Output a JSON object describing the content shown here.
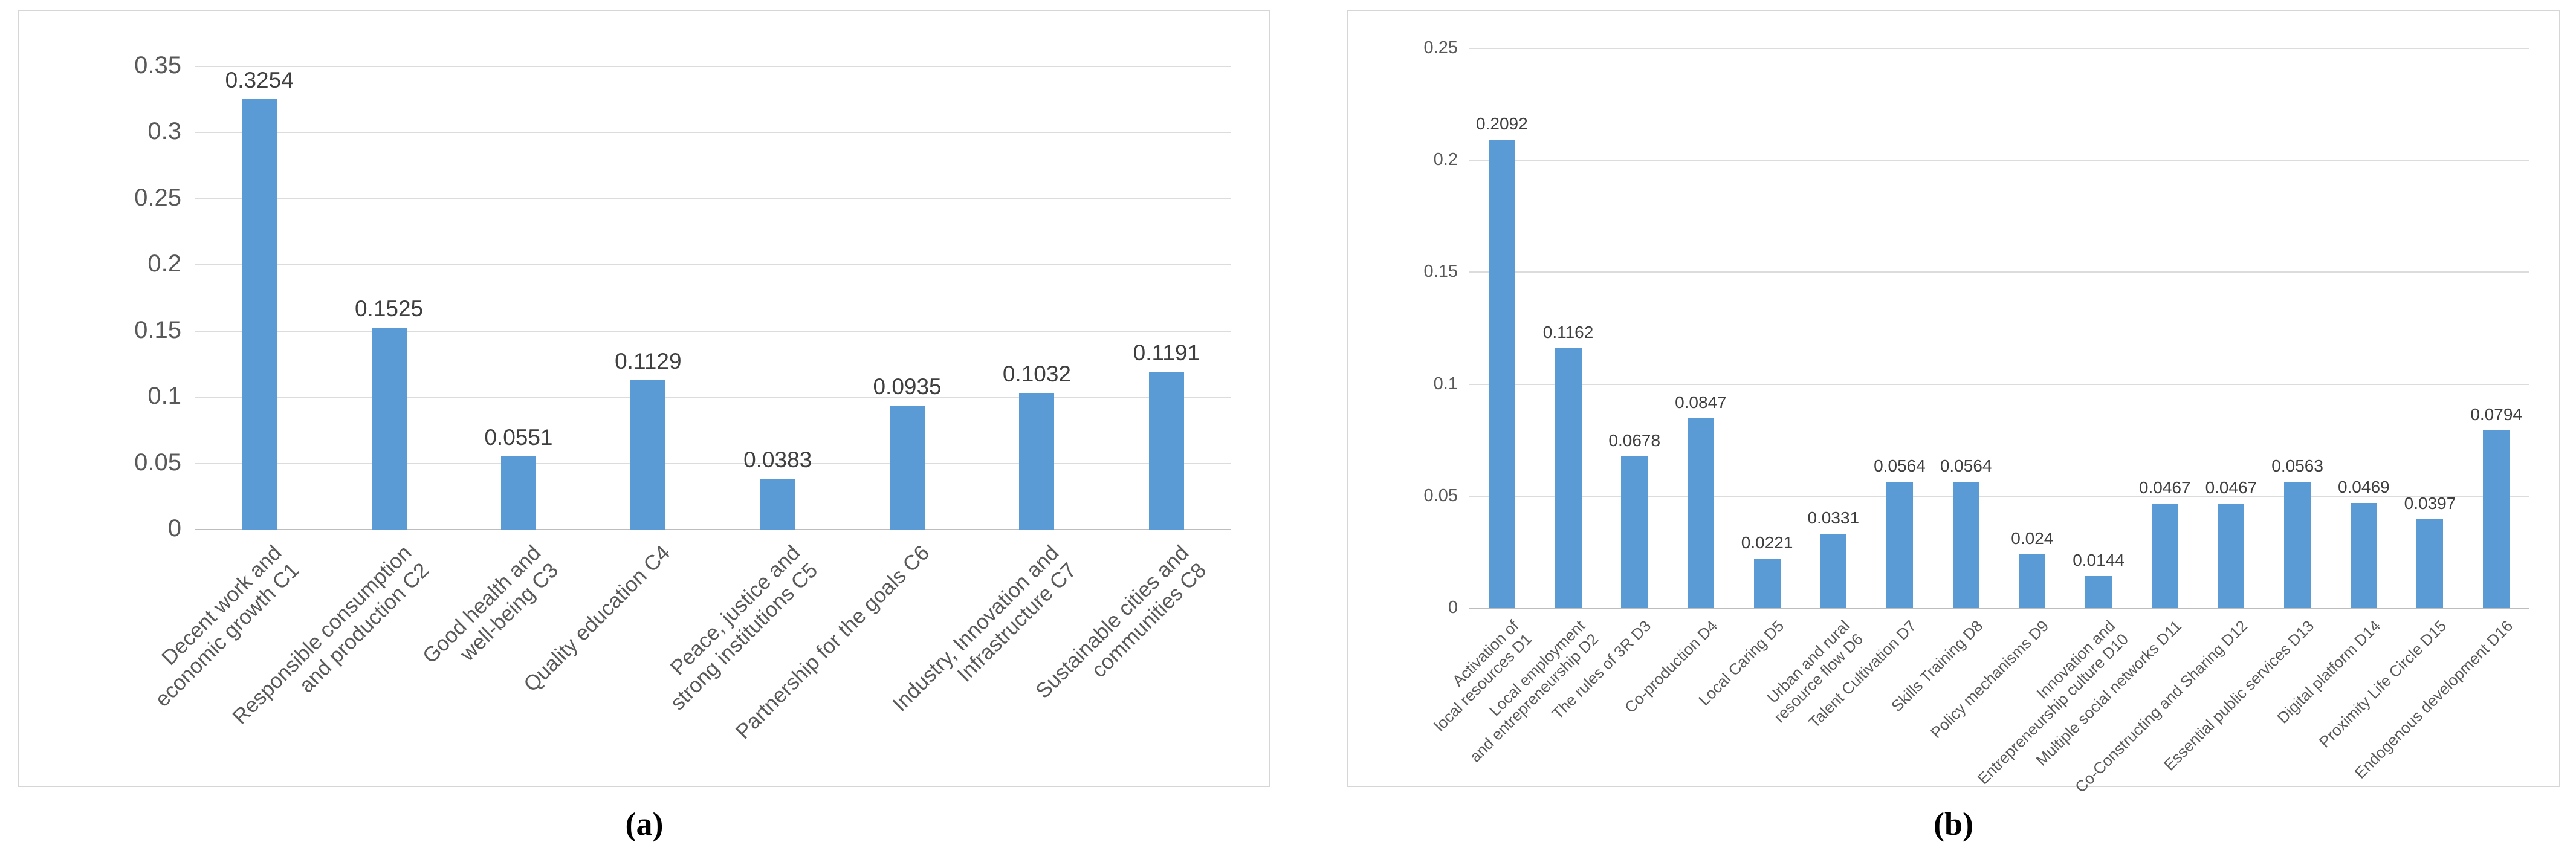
{
  "figure": {
    "captions": [
      "(a)",
      "(b)"
    ]
  },
  "chart_data": [
    {
      "type": "bar",
      "title": "",
      "xlabel": "",
      "ylabel": "",
      "legend": "none",
      "grid": true,
      "bar_color": "#5B9BD5",
      "label_rotation": 45,
      "ylim": [
        0,
        0.35
      ],
      "ytick_labels": [
        "0.35",
        "0.3",
        "0.25",
        "0.2",
        "0.15",
        "0.1",
        "0.05",
        "0"
      ],
      "categories": [
        "Decent work and\neconomic growth C1",
        "Responsible consumption\nand production C2",
        "Good health and\nwell-being C3",
        "Quality education C4",
        "Peace, justice and\nstrong institutions C5",
        "Partnership for the goals C6",
        "Industry, Innovation and\nInfrastructure C7",
        "Sustainable cities and\ncommunities C8"
      ],
      "values": [
        0.3254,
        0.1525,
        0.0551,
        0.1129,
        0.0383,
        0.0935,
        0.1032,
        0.1191
      ],
      "value_labels": [
        "0.3254",
        "0.1525",
        "0.0551",
        "0.1129",
        "0.0383",
        "0.0935",
        "0.1032",
        "0.1191"
      ]
    },
    {
      "type": "bar",
      "title": "",
      "xlabel": "",
      "ylabel": "",
      "legend": "none",
      "grid": true,
      "bar_color": "#5B9BD5",
      "label_rotation": 45,
      "ylim": [
        0,
        0.25
      ],
      "ytick_labels": [
        "0.25",
        "0.2",
        "0.15",
        "0.1",
        "0.05",
        "0"
      ],
      "categories": [
        "Activation of\nlocal resources D1",
        "Local employment\nand entrepreneurship D2",
        "The rules of 3R D3",
        "Co-production D4",
        "Local Caring D5",
        "Urban and rural\nresource flow D6",
        "Talent Cultivation D7",
        "Skills Training D8",
        "Policy mechanisms D9",
        "Innovation and\nEntrepreneurship culture D10",
        "Multiple social networks D11",
        "Co-Constructing and Sharing D12",
        "Essential public services D13",
        "Digital platform D14",
        "Proximity Life Circle D15",
        "Endogenous development D16"
      ],
      "values": [
        0.2092,
        0.1162,
        0.0678,
        0.0847,
        0.0221,
        0.0331,
        0.0564,
        0.0564,
        0.024,
        0.0144,
        0.0467,
        0.0467,
        0.0563,
        0.0469,
        0.0397,
        0.0794
      ],
      "value_labels": [
        "0.2092",
        "0.1162",
        "0.0678",
        "0.0847",
        "0.0221",
        "0.0331",
        "0.0564",
        "0.0564",
        "0.024",
        "0.0144",
        "0.0467",
        "0.0467",
        "0.0563",
        "0.0469",
        "0.0397",
        "0.0794"
      ]
    }
  ]
}
